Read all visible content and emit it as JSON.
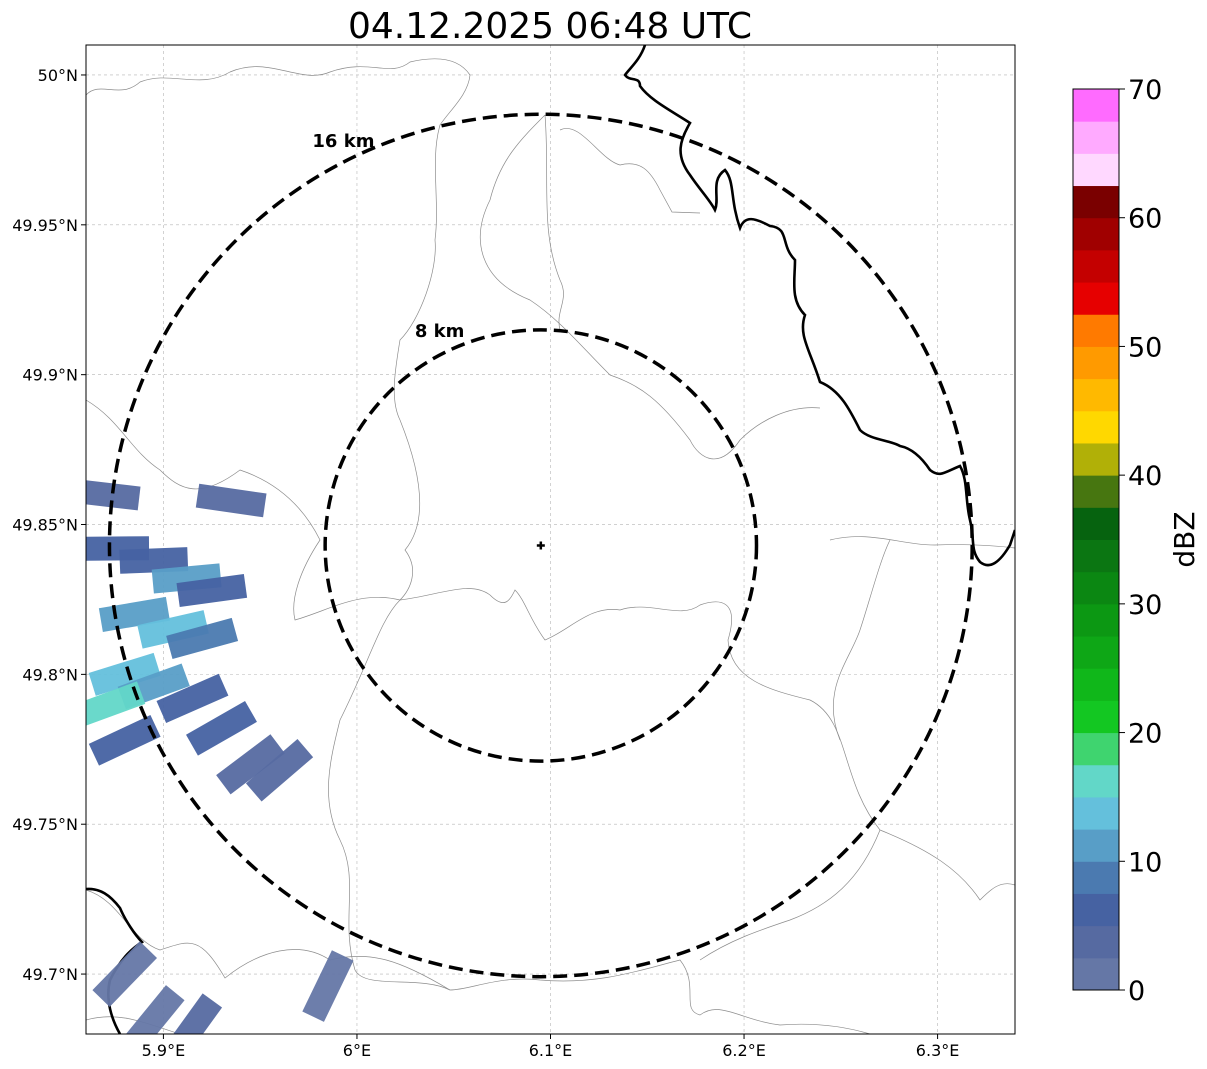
{
  "title": "04.12.2025 06:48 UTC",
  "map": {
    "lon_range": [
      5.86,
      6.34
    ],
    "lat_range": [
      49.68,
      50.01
    ],
    "x_ticks": [
      {
        "value": 5.9,
        "label": "5.9°E"
      },
      {
        "value": 6.0,
        "label": "6°E"
      },
      {
        "value": 6.1,
        "label": "6.1°E"
      },
      {
        "value": 6.2,
        "label": "6.2°E"
      },
      {
        "value": 6.3,
        "label": "6.3°E"
      }
    ],
    "y_ticks": [
      {
        "value": 50.0,
        "label": "50°N"
      },
      {
        "value": 49.95,
        "label": "49.95°N"
      },
      {
        "value": 49.9,
        "label": "49.9°N"
      },
      {
        "value": 49.85,
        "label": "49.85°N"
      },
      {
        "value": 49.8,
        "label": "49.8°N"
      },
      {
        "value": 49.75,
        "label": "49.75°N"
      },
      {
        "value": 49.7,
        "label": "49.7°N"
      }
    ],
    "gridlines": true,
    "center": {
      "lon": 6.095,
      "lat": 49.843,
      "marker": "plus"
    },
    "range_rings": [
      {
        "radius_km": 8,
        "label": "8 km"
      },
      {
        "radius_km": 16,
        "label": "16 km"
      }
    ]
  },
  "colorbar": {
    "label": "dBZ",
    "min": 0,
    "max": 70,
    "step": 2.5,
    "ticks": [
      {
        "value": 0,
        "label": "0"
      },
      {
        "value": 10,
        "label": "10"
      },
      {
        "value": 20,
        "label": "20"
      },
      {
        "value": 30,
        "label": "30"
      },
      {
        "value": 40,
        "label": "40"
      },
      {
        "value": 50,
        "label": "50"
      },
      {
        "value": 60,
        "label": "60"
      },
      {
        "value": 70,
        "label": "70"
      }
    ],
    "colors": [
      "#6577a6",
      "#566aa1",
      "#4662a2",
      "#4b7ab0",
      "#589ec7",
      "#64c0dc",
      "#62d7c8",
      "#3fd46f",
      "#13c722",
      "#10b71a",
      "#0ea716",
      "#0c9813",
      "#0b8712",
      "#0b7612",
      "#06630f",
      "#477610",
      "#b1b007",
      "#ffd800",
      "#ffb900",
      "#ff9a00",
      "#ff7a00",
      "#e60000",
      "#c40000",
      "#a00000",
      "#7a0000",
      "#ffd8ff",
      "#ffaaff",
      "#ff6bff",
      "#f230f2"
    ]
  },
  "echoes_dbz": [
    {
      "lon": 5.875,
      "lat": 49.842,
      "dbz": 5
    },
    {
      "lon": 5.895,
      "lat": 49.838,
      "dbz": 7
    },
    {
      "lon": 5.912,
      "lat": 49.832,
      "dbz": 10
    },
    {
      "lon": 5.925,
      "lat": 49.828,
      "dbz": 5
    },
    {
      "lon": 5.885,
      "lat": 49.82,
      "dbz": 12
    },
    {
      "lon": 5.905,
      "lat": 49.815,
      "dbz": 13
    },
    {
      "lon": 5.92,
      "lat": 49.812,
      "dbz": 9
    },
    {
      "lon": 5.88,
      "lat": 49.8,
      "dbz": 14
    },
    {
      "lon": 5.895,
      "lat": 49.796,
      "dbz": 11
    },
    {
      "lon": 5.872,
      "lat": 49.79,
      "dbz": 16
    },
    {
      "lon": 5.915,
      "lat": 49.792,
      "dbz": 6
    },
    {
      "lon": 5.88,
      "lat": 49.778,
      "dbz": 7
    },
    {
      "lon": 5.93,
      "lat": 49.782,
      "dbz": 5
    },
    {
      "lon": 5.945,
      "lat": 49.77,
      "dbz": 4
    },
    {
      "lon": 5.935,
      "lat": 49.858,
      "dbz": 3
    },
    {
      "lon": 5.87,
      "lat": 49.86,
      "dbz": 4
    },
    {
      "lon": 5.96,
      "lat": 49.768,
      "dbz": 3
    },
    {
      "lon": 5.88,
      "lat": 49.7,
      "dbz": 2
    },
    {
      "lon": 5.985,
      "lat": 49.696,
      "dbz": 1
    },
    {
      "lon": 5.895,
      "lat": 49.685,
      "dbz": 2
    },
    {
      "lon": 5.915,
      "lat": 49.682,
      "dbz": 3
    }
  ]
}
